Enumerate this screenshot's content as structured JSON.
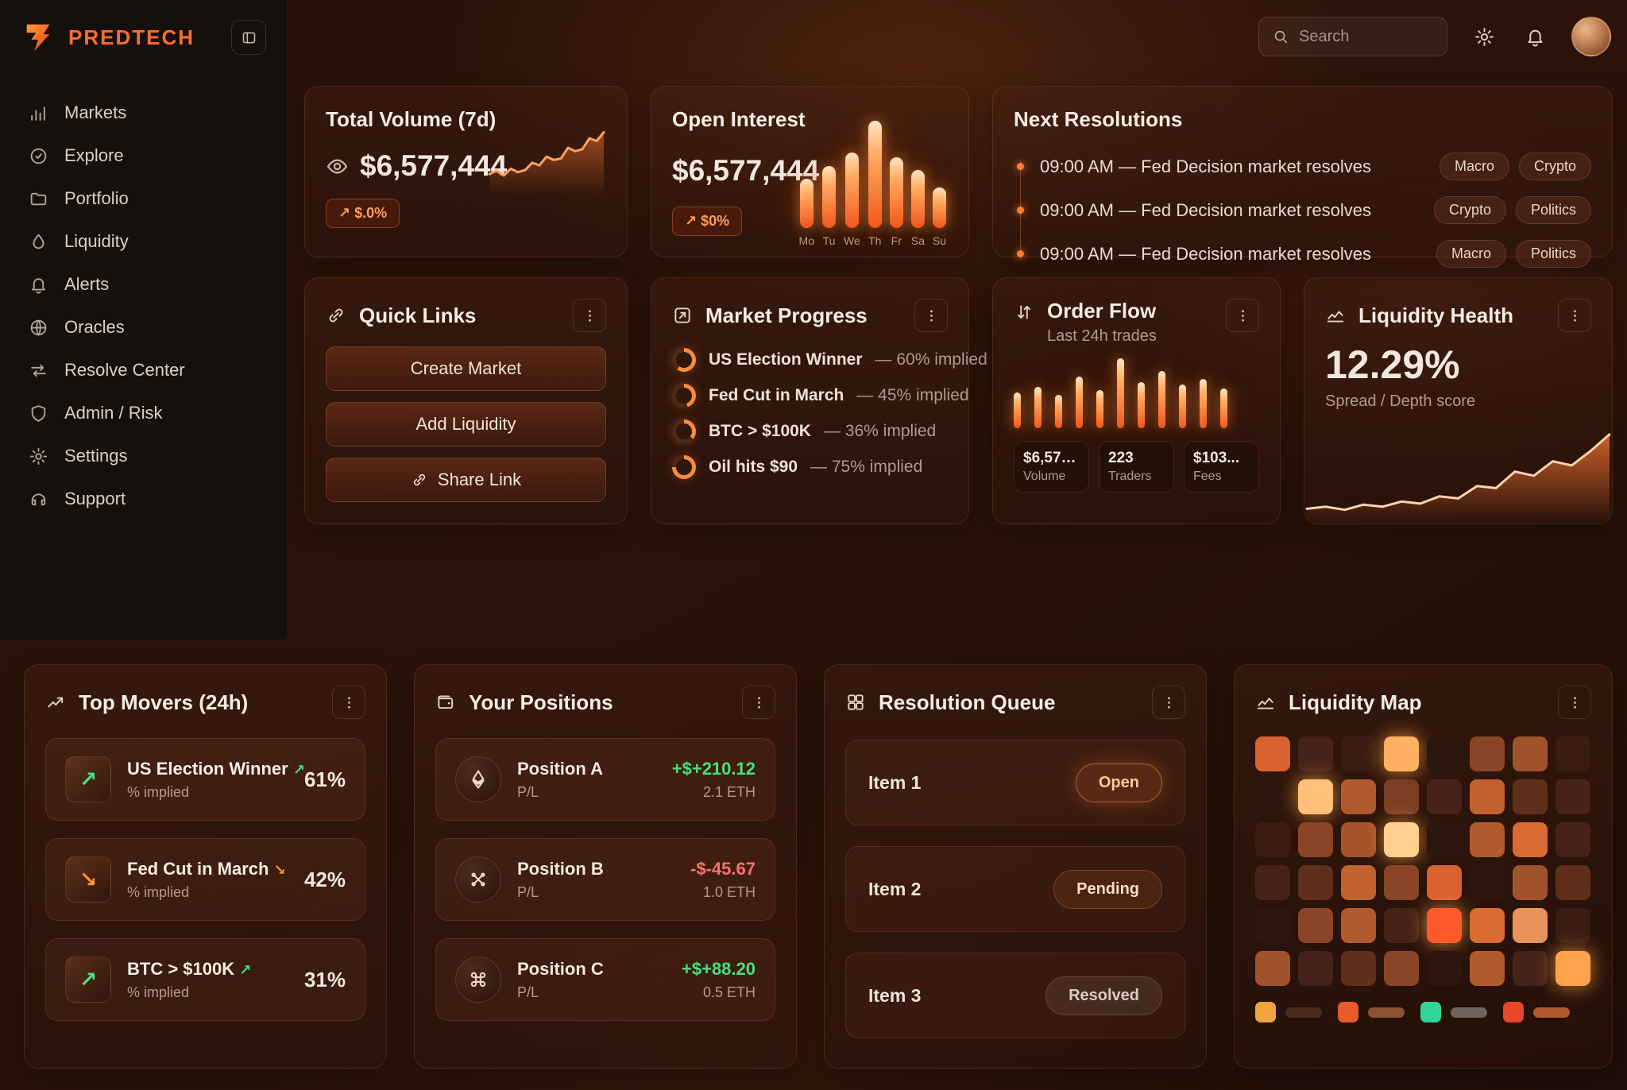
{
  "brand": {
    "name": "PREDTECH"
  },
  "topbar": {
    "search_placeholder": "Search"
  },
  "colors": {
    "accent": "#ff7a33",
    "positive": "#4ade80",
    "negative": "#f87171",
    "bar_glow": "#ffb066"
  },
  "sidebar": {
    "items": [
      {
        "label": "Markets",
        "icon": "bar-chart-icon"
      },
      {
        "label": "Explore",
        "icon": "compass-icon"
      },
      {
        "label": "Portfolio",
        "icon": "folder-icon"
      },
      {
        "label": "Liquidity",
        "icon": "droplet-icon"
      },
      {
        "label": "Alerts",
        "icon": "bell-icon"
      },
      {
        "label": "Oracles",
        "icon": "globe-icon"
      },
      {
        "label": "Resolve Center",
        "icon": "swap-icon"
      },
      {
        "label": "Admin / Risk",
        "icon": "shield-icon"
      },
      {
        "label": "Settings",
        "icon": "gear-icon"
      },
      {
        "label": "Support",
        "icon": "headset-icon"
      }
    ]
  },
  "total_volume": {
    "title": "Total Volume (7d)",
    "value": "$6,577,444",
    "badge": "↗ $.0%",
    "chart": {
      "type": "area",
      "values": [
        28,
        33,
        26,
        36,
        31,
        34,
        45,
        41,
        54,
        49,
        51,
        67,
        62,
        65,
        81,
        77,
        90
      ]
    }
  },
  "open_interest": {
    "title": "Open Interest",
    "value": "$6,577,444",
    "badge": "↗ $0%",
    "chart": {
      "type": "bar",
      "categories": [
        "Mo",
        "Tu",
        "We",
        "Th",
        "Fr",
        "Sa",
        "Su"
      ],
      "values": [
        46,
        58,
        70,
        100,
        66,
        54,
        38
      ]
    }
  },
  "next_resolutions": {
    "title": "Next Resolutions",
    "items": [
      {
        "label": "09:00 AM — Fed Decision market resolves",
        "tags": [
          "Macro",
          "Crypto"
        ]
      },
      {
        "label": "09:00 AM — Fed Decision market resolves",
        "tags": [
          "Crypto",
          "Politics"
        ]
      },
      {
        "label": "09:00 AM — Fed Decision market resolves",
        "tags": [
          "Macro",
          "Politics"
        ]
      }
    ]
  },
  "quick_links": {
    "title": "Quick Links",
    "buttons": [
      {
        "label": "Create Market"
      },
      {
        "label": "Add Liquidity"
      },
      {
        "label": "Share Link",
        "icon": "link-icon"
      }
    ]
  },
  "market_progress": {
    "title": "Market Progress",
    "items": [
      {
        "label": "US Election Winner",
        "detail": "— 60% implied",
        "pct": 60
      },
      {
        "label": "Fed Cut in March",
        "detail": "— 45% implied",
        "pct": 45
      },
      {
        "label": "BTC > $100K",
        "detail": "— 36% implied",
        "pct": 36
      },
      {
        "label": "Oil hits $90",
        "detail": "— 75% implied",
        "pct": 75
      }
    ]
  },
  "order_flow": {
    "title": "Order Flow",
    "subtitle": "Last 24h trades",
    "chart": {
      "type": "bar",
      "values": [
        45,
        52,
        42,
        65,
        48,
        88,
        58,
        72,
        55,
        62,
        50
      ]
    },
    "stats": [
      {
        "value": "$6,577.7k",
        "label": "Volume"
      },
      {
        "value": "223",
        "label": "Traders"
      },
      {
        "value": "$103...",
        "label": "Fees"
      }
    ]
  },
  "liquidity_health": {
    "title": "Liquidity Health",
    "value": "12.29%",
    "subtitle": "Spread / Depth score",
    "chart": {
      "type": "area",
      "values": [
        12,
        14,
        11,
        16,
        14,
        19,
        17,
        24,
        22,
        34,
        32,
        48,
        44,
        58,
        54,
        68,
        84
      ]
    }
  },
  "top_movers": {
    "title": "Top Movers (24h)",
    "items": [
      {
        "label": "US Election Winner",
        "direction": "up",
        "sub": "% implied",
        "value": "61%"
      },
      {
        "label": "Fed Cut in March",
        "direction": "down",
        "sub": "% implied",
        "value": "42%"
      },
      {
        "label": "BTC > $100K",
        "direction": "up",
        "sub": "% implied",
        "value": "31%"
      }
    ]
  },
  "your_positions": {
    "title": "Your Positions",
    "items": [
      {
        "name": "Position A",
        "sub": "P/L",
        "pnl": "+$+210.12",
        "amount": "2.1 ETH",
        "trend": "up",
        "icon": "eth-icon"
      },
      {
        "name": "Position B",
        "sub": "P/L",
        "pnl": "-$-45.67",
        "amount": "1.0 ETH",
        "trend": "down",
        "icon": "tools-icon"
      },
      {
        "name": "Position C",
        "sub": "P/L",
        "pnl": "+$+88.20",
        "amount": "0.5 ETH",
        "trend": "up",
        "icon": "command-icon"
      }
    ]
  },
  "resolution_queue": {
    "title": "Resolution Queue",
    "items": [
      {
        "label": "Item 1",
        "status": "Open"
      },
      {
        "label": "Item 2",
        "status": "Pending"
      },
      {
        "label": "Item 3",
        "status": "Resolved"
      }
    ]
  },
  "liquidity_map": {
    "title": "Liquidity Map",
    "grid": [
      [
        "#d96230",
        "#472218",
        "#3a1c12",
        "#ffb061",
        "#2d160e",
        "#8a4526",
        "#a0522d",
        "#3a1c12"
      ],
      [
        "#2d160e",
        "#ffc07a",
        "#b05a2e",
        "#7d3d22",
        "#472218",
        "#c2622f",
        "#5f2f1b",
        "#472218"
      ],
      [
        "#3a1c12",
        "#8a4526",
        "#a5542b",
        "#ffd08f",
        "#2d160e",
        "#b05a2e",
        "#d96b33",
        "#472218"
      ],
      [
        "#472218",
        "#5f2f1b",
        "#c2622f",
        "#8a4526",
        "#d96230",
        "#2d160e",
        "#a0522d",
        "#5f2f1b"
      ],
      [
        "#2d160e",
        "#8a4526",
        "#b05a2e",
        "#472218",
        "#ff5a2a",
        "#d96b33",
        "#e8935a",
        "#3a1c12"
      ],
      [
        "#a0522d",
        "#472218",
        "#5f2f1b",
        "#8a4526",
        "#2d160e",
        "#b05a2e",
        "#472218",
        "#ffa24f"
      ]
    ],
    "glow": [
      [
        0,
        3
      ],
      [
        1,
        1
      ],
      [
        2,
        3
      ],
      [
        4,
        4
      ],
      [
        5,
        7
      ]
    ],
    "legend": [
      {
        "swatch": "#f2a33c",
        "pill": "#4a2c1e"
      },
      {
        "swatch": "#e85a2a",
        "pill": "#8a5230"
      },
      {
        "swatch": "#34d399",
        "pill": "#6f655c"
      },
      {
        "swatch": "#e8452a",
        "pill": "#b05a2e"
      }
    ]
  }
}
